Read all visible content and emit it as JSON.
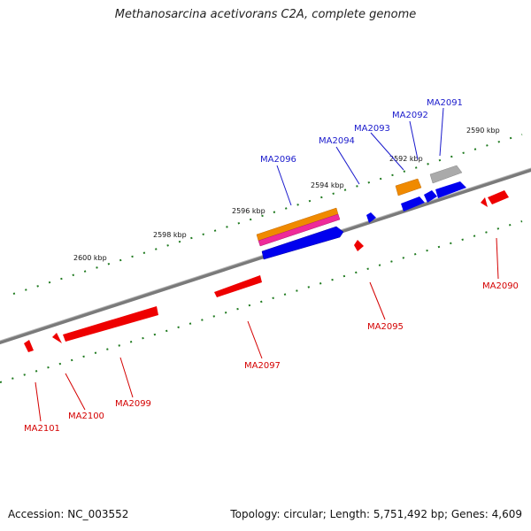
{
  "title": "Methanosarcina acetivorans C2A, complete genome",
  "footer": {
    "accession": "Accession: NC_003552",
    "summary": "Topology: circular; Length: 5,751,492 bp; Genes: 4,609"
  },
  "colors": {
    "forward_label": "#1a1acc",
    "reverse_label": "#d40000",
    "forward_gene": "#0000ee",
    "reverse_gene": "#ee0000",
    "tick": "#1f7a1f",
    "backbone": "#777777"
  },
  "scale_ticks": [
    {
      "label": "2590 kbp"
    },
    {
      "label": "2592 kbp"
    },
    {
      "label": "2594 kbp"
    },
    {
      "label": "2596 kbp"
    },
    {
      "label": "2598 kbp"
    },
    {
      "label": "2600 kbp"
    }
  ],
  "forward_genes": [
    {
      "label": "MA2091"
    },
    {
      "label": "MA2092"
    },
    {
      "label": "MA2093"
    },
    {
      "label": "MA2094"
    },
    {
      "label": "MA2096"
    }
  ],
  "reverse_genes": [
    {
      "label": "MA2090"
    },
    {
      "label": "MA2095"
    },
    {
      "label": "MA2097"
    },
    {
      "label": "MA2099"
    },
    {
      "label": "MA2100"
    },
    {
      "label": "MA2101"
    }
  ]
}
